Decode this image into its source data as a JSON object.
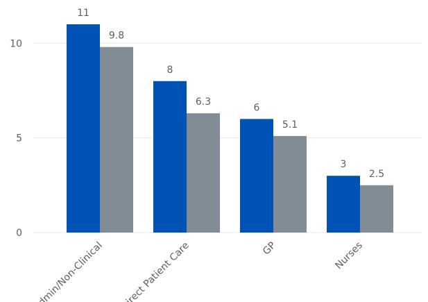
{
  "chart_data": {
    "type": "bar",
    "categories": [
      "Admin/Non-Clinical",
      "Direct Patient Care",
      "GP",
      "Nurses"
    ],
    "series": [
      {
        "values": [
          11,
          8,
          6,
          3
        ],
        "color": "#0052b4"
      },
      {
        "values": [
          9.8,
          6.3,
          5.1,
          2.5
        ],
        "color": "#828c94"
      }
    ],
    "value_labels": [
      [
        "11",
        "8",
        "6",
        "3"
      ],
      [
        "9.8",
        "6.3",
        "5.1",
        "2.5"
      ]
    ],
    "y_ticks": [
      0,
      5,
      10
    ],
    "ylim": [
      0,
      11
    ],
    "grid": true,
    "legend": false,
    "title": "",
    "xlabel": "",
    "ylabel": ""
  }
}
